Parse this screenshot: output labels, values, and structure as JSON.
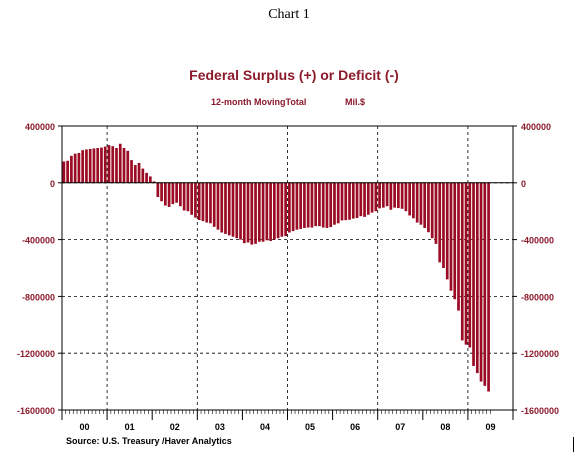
{
  "header": "Chart 1",
  "source": "Source:  U.S. Treasury /Haver Analytics",
  "chart_data": {
    "type": "bar",
    "title": "Federal Surplus (+) or Deficit (-)",
    "subtitle_left": "12-month MovingTotal",
    "subtitle_right": "Mil.$",
    "ylim": [
      -1600000,
      400000
    ],
    "yticks": [
      400000,
      0,
      -400000,
      -800000,
      -1200000,
      -1600000
    ],
    "ytick_labels": [
      "400000",
      "0",
      "-400000",
      "-800000",
      "-1200000",
      "-1600000"
    ],
    "x_labels": [
      "00",
      "01",
      "02",
      "03",
      "04",
      "05",
      "06",
      "07",
      "08",
      "09"
    ],
    "grid": true,
    "colors": {
      "bar": "#9b0b23",
      "title": "#8b1a2b",
      "axis_text": "#8b1a2b"
    },
    "series": [
      {
        "values": [
          150000,
          155000,
          190000,
          205000,
          210000,
          230000,
          235000,
          238000,
          242000,
          245000,
          248000,
          255000,
          265000,
          258000,
          245000,
          275000,
          245000,
          225000,
          160000,
          125000,
          140000,
          100000,
          70000,
          45000,
          10000,
          -100000,
          -130000,
          -160000,
          -170000,
          -150000,
          -140000,
          -165000,
          -195000,
          -200000,
          -225000,
          -245000,
          -262000,
          -270000,
          -280000,
          -285000,
          -310000,
          -330000,
          -350000,
          -360000,
          -370000,
          -380000,
          -390000,
          -400000,
          -425000,
          -420000,
          -435000,
          -430000,
          -415000,
          -415000,
          -405000,
          -410000,
          -400000,
          -390000,
          -380000,
          -375000,
          -350000,
          -340000,
          -330000,
          -325000,
          -318000,
          -315000,
          -315000,
          -305000,
          -305000,
          -315000,
          -318000,
          -312000,
          -295000,
          -285000,
          -265000,
          -263000,
          -260000,
          -252000,
          -248000,
          -235000,
          -240000,
          -225000,
          -210000,
          -200000,
          -180000,
          -175000,
          -165000,
          -190000,
          -175000,
          -178000,
          -183000,
          -200000,
          -230000,
          -250000,
          -280000,
          -295000,
          -318000,
          -348000,
          -390000,
          -430000,
          -560000,
          -600000,
          -680000,
          -760000,
          -820000,
          -900000,
          -1110000,
          -1140000,
          -1160000,
          -1290000,
          -1340000,
          -1400000,
          -1430000,
          -1470000
        ]
      }
    ]
  }
}
